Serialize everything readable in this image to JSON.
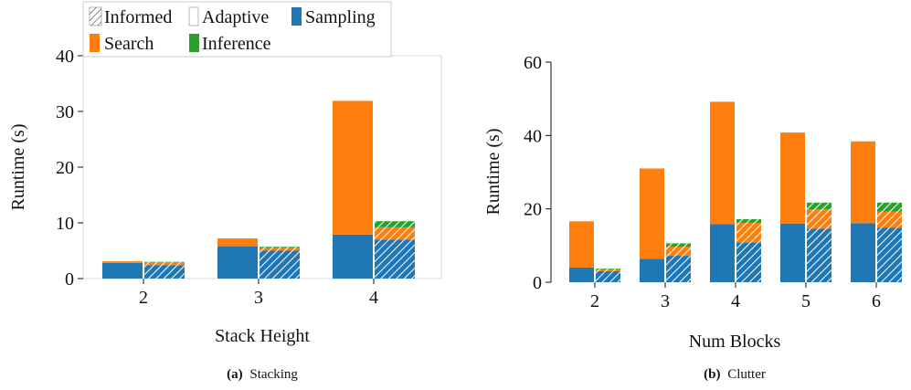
{
  "legend": {
    "items": [
      {
        "key": "informed",
        "label": "Informed",
        "kind": "hatch"
      },
      {
        "key": "adaptive",
        "label": "Adaptive",
        "kind": "plain"
      },
      {
        "key": "sampling",
        "label": "Sampling",
        "color": "#1f77b4"
      },
      {
        "key": "search",
        "label": "Search",
        "color": "#ff7f0e"
      },
      {
        "key": "inference",
        "label": "Inference",
        "color": "#2ca02c"
      }
    ]
  },
  "colors": {
    "sampling": "#1f77b4",
    "search": "#ff7f0e",
    "inference": "#2ca02c",
    "hatch": "#ffffff"
  },
  "chart_data": [
    {
      "type": "bar",
      "stacked": true,
      "caption_tag": "(a)",
      "caption_text": "Stacking",
      "xlabel": "Stack Height",
      "ylabel": "Runtime (s)",
      "categories": [
        "2",
        "3",
        "4"
      ],
      "ylim": [
        0,
        40
      ],
      "yticks": [
        "0",
        "10",
        "20",
        "30",
        "40"
      ],
      "groups": [
        {
          "name": "Adaptive",
          "sampling": [
            2.8,
            5.8,
            7.9
          ],
          "search": [
            0.3,
            1.4,
            24.0
          ],
          "inference": [
            0,
            0,
            0
          ]
        },
        {
          "name": "Informed",
          "sampling": [
            2.4,
            5.0,
            7.0
          ],
          "search": [
            0.5,
            0.5,
            2.2
          ],
          "inference": [
            0.1,
            0.2,
            1.1
          ]
        }
      ]
    },
    {
      "type": "bar",
      "stacked": true,
      "caption_tag": "(b)",
      "caption_text": "Clutter",
      "xlabel": "Num Blocks",
      "ylabel": "Runtime (s)",
      "categories": [
        "2",
        "3",
        "4",
        "5",
        "6"
      ],
      "ylim": [
        0,
        60
      ],
      "yticks": [
        "0",
        "20",
        "40",
        "60"
      ],
      "groups": [
        {
          "name": "Adaptive",
          "sampling": [
            4.0,
            6.4,
            15.8,
            16.0,
            16.1
          ],
          "search": [
            12.6,
            24.6,
            33.4,
            24.8,
            22.3
          ],
          "inference": [
            0,
            0,
            0,
            0,
            0
          ]
        },
        {
          "name": "Informed",
          "sampling": [
            3.0,
            7.2,
            10.8,
            14.6,
            14.9
          ],
          "search": [
            0.5,
            2.5,
            5.4,
            5.3,
            4.4
          ],
          "inference": [
            0.2,
            0.9,
            1.0,
            1.8,
            2.4
          ]
        }
      ]
    }
  ]
}
